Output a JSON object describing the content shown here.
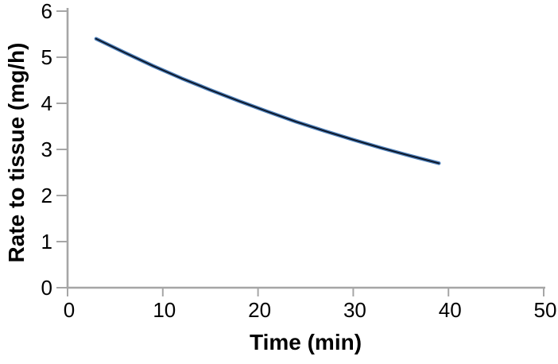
{
  "chart_data": {
    "type": "line",
    "title": "",
    "xlabel": "Time (min)",
    "ylabel": "Rate to tissue (mg/h)",
    "xlim": [
      0,
      50
    ],
    "ylim": [
      0,
      6
    ],
    "x_ticks": [
      0,
      10,
      20,
      30,
      40,
      50
    ],
    "y_ticks": [
      0,
      1,
      2,
      3,
      4,
      5,
      6
    ],
    "grid": false,
    "legend_position": "none",
    "axis_color": "#a6a6a6",
    "tick_label_color": "#000000",
    "series": [
      {
        "x": [
          3,
          6,
          9,
          12,
          15,
          18,
          21,
          24,
          27,
          30,
          33,
          36,
          39
        ],
        "y": [
          5.4,
          5.1,
          4.81,
          4.54,
          4.29,
          4.05,
          3.82,
          3.6,
          3.4,
          3.21,
          3.03,
          2.86,
          2.7
        ],
        "line_color_outer": "#4e80ba",
        "line_color_inner": "#0c1526"
      }
    ]
  }
}
